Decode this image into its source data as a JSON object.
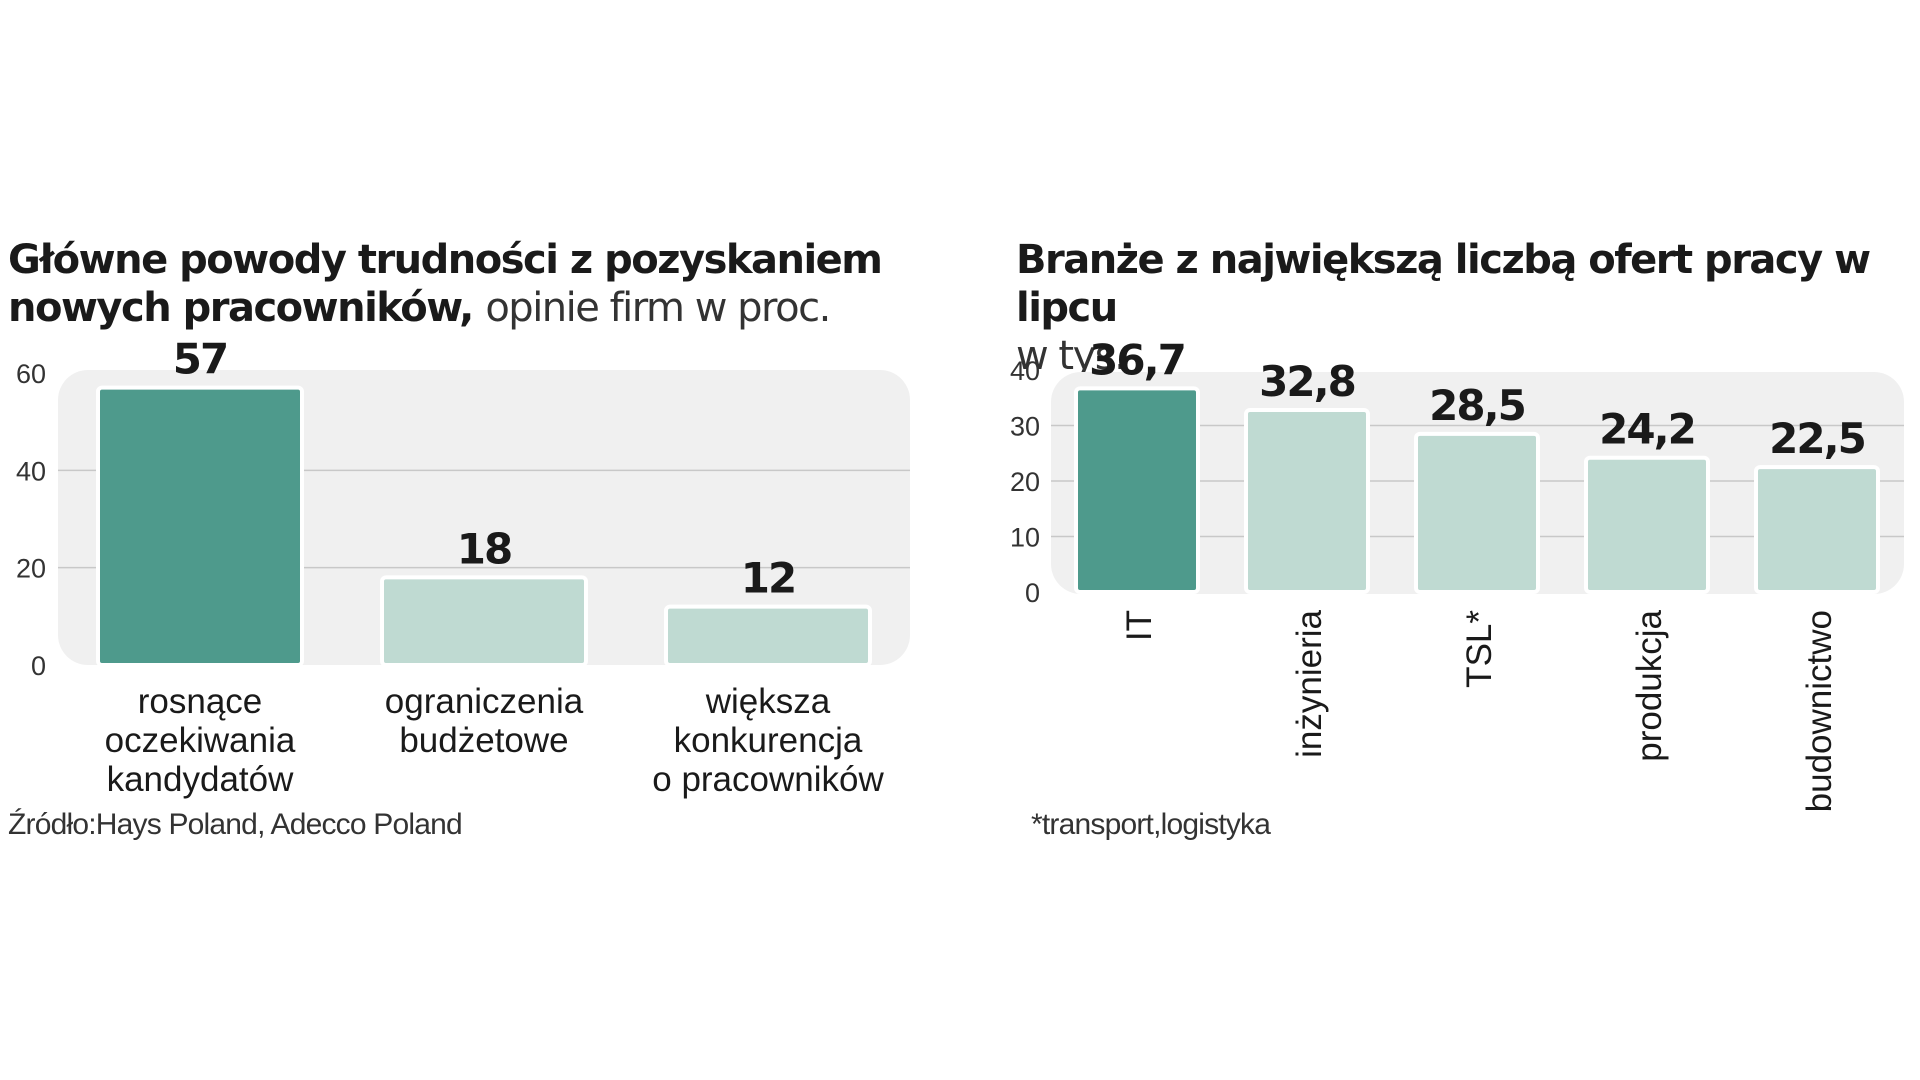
{
  "colors": {
    "highlight": "#4e9a8c",
    "normal": "#bfdad2",
    "panel": "#f0f0f0",
    "grid": "#c8c8c8"
  },
  "left": {
    "title_bold": "Główne powody trudności z pozyskaniem nowych pracowników,",
    "title_light": "opinie firm w proc.",
    "source": "Źródło:Hays Poland,  Adecco Poland"
  },
  "right": {
    "title_bold": "Branże z największą liczbą ofert pracy w lipcu",
    "title_light": "w tys.",
    "footnote": "*transport,logistyka"
  },
  "chart_data": [
    {
      "type": "bar",
      "title": "Główne powody trudności z pozyskaniem nowych pracowników, opinie firm w proc.",
      "categories": [
        [
          "rosnące",
          "oczekiwania",
          "kandydatów"
        ],
        [
          "ograniczenia",
          "budżetowe"
        ],
        [
          "większa",
          "konkurencja",
          "o pracowników"
        ]
      ],
      "values": [
        57,
        18,
        12
      ],
      "value_labels": [
        "57",
        "18",
        "12"
      ],
      "highlight_index": 0,
      "ylim": [
        0,
        60
      ],
      "yticks": [
        0,
        20,
        40,
        60
      ],
      "grid": true,
      "xlabel": "",
      "ylabel": ""
    },
    {
      "type": "bar",
      "title": "Branże z największą liczbą ofert pracy w lipcu w tys.",
      "categories": [
        "IT",
        "inżynieria",
        "TSL*",
        "produkcja",
        "budownictwo"
      ],
      "values": [
        36.7,
        32.8,
        28.5,
        24.2,
        22.5
      ],
      "value_labels": [
        "36,7",
        "32,8",
        "28,5",
        "24,2",
        "22,5"
      ],
      "highlight_index": 0,
      "ylim": [
        0,
        40
      ],
      "yticks": [
        0,
        10,
        20,
        30,
        40
      ],
      "grid": true,
      "category_label_rotation": "vertical",
      "xlabel": "",
      "ylabel": ""
    }
  ]
}
